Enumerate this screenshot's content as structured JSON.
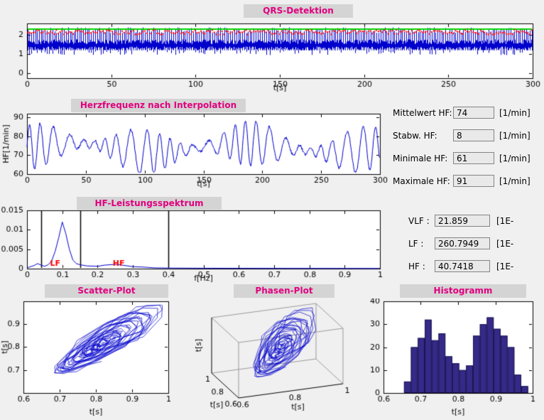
{
  "colors": {
    "background": "#f0f0f0",
    "title_text": "#e0007f",
    "title_box_bg": "#d4d4d4",
    "plot_bg": "#ffffff",
    "axis": "#000000",
    "signal_blue": "#0000cc",
    "threshold_green": "#00d400",
    "marker_red": "#ff0000",
    "hist_fill": "#352a87",
    "hist_edge": "#1a1550",
    "value_box_bg": "#e9e9e9",
    "value_box_border": "#848484"
  },
  "hf_stats": {
    "rows": [
      {
        "label": "Mittelwert HF:",
        "value": "74",
        "unit": "[1/min]"
      },
      {
        "label": "Stabw. HF:",
        "value": "8",
        "unit": "[1/min]"
      },
      {
        "label": "Minimale HF:",
        "value": "61",
        "unit": "[1/min]"
      },
      {
        "label": "Maximale HF:",
        "value": "91",
        "unit": "[1/min]"
      }
    ]
  },
  "power_stats": {
    "rows": [
      {
        "label": "VLF :",
        "value": "21.859",
        "unit": "[1E-"
      },
      {
        "label": "LF :",
        "value": "260.7949",
        "unit": "[1E-"
      },
      {
        "label": "HF :",
        "value": "40.7418",
        "unit": "[1E-"
      }
    ]
  },
  "chart_data": [
    {
      "id": "qrs",
      "type": "line",
      "title": "QRS-Detektion",
      "xlabel": "t[s]",
      "xlim": [
        0,
        300
      ],
      "xticks": [
        0,
        50,
        100,
        150,
        200,
        250,
        300
      ],
      "ylim": [
        -0.25,
        2.6
      ],
      "yticks": [
        0,
        1,
        2
      ],
      "description": "ECG signal (blue) with QRS spikes reaching detection threshold (green line) and red QRS detection markers",
      "threshold_line": 2.3,
      "baseline_band": [
        1.2,
        1.8
      ],
      "spike_peak": [
        2.1,
        2.4
      ],
      "beat_interval_s": 1.15
    },
    {
      "id": "hr",
      "type": "line",
      "title": "Herzfrequenz nach Interpolation",
      "xlabel": "t[s]",
      "ylabel": "HF[1/min]",
      "xlim": [
        0,
        300
      ],
      "xticks": [
        0,
        50,
        100,
        150,
        200,
        250,
        300
      ],
      "ylim": [
        60,
        92
      ],
      "yticks": [
        60,
        70,
        80,
        90
      ],
      "mean": 74,
      "std": 8,
      "min": 61,
      "max": 91,
      "oscillation_period_s": 10.8,
      "description": "Interpolated heart rate oscillating between about 61 and 91 1/min"
    },
    {
      "id": "spectrum",
      "type": "line",
      "title": "HF-Leistungsspektrum",
      "xlabel": "f[Hz]",
      "xlim": [
        0,
        1
      ],
      "xticks": [
        0,
        0.1,
        0.2,
        0.3,
        0.4,
        0.5,
        0.6,
        0.7,
        0.8,
        0.9,
        1
      ],
      "ylim": [
        0,
        0.015
      ],
      "yticks": [
        0,
        0.005,
        0.01,
        0.015
      ],
      "points": [
        [
          0,
          0.0002
        ],
        [
          0.02,
          0.0008
        ],
        [
          0.03,
          0.0013
        ],
        [
          0.04,
          0.0009
        ],
        [
          0.05,
          0.0006
        ],
        [
          0.06,
          0.001
        ],
        [
          0.07,
          0.002
        ],
        [
          0.08,
          0.0045
        ],
        [
          0.09,
          0.008
        ],
        [
          0.1,
          0.012
        ],
        [
          0.11,
          0.009
        ],
        [
          0.12,
          0.005
        ],
        [
          0.13,
          0.0022
        ],
        [
          0.14,
          0.0013
        ],
        [
          0.15,
          0.001
        ],
        [
          0.17,
          0.0007
        ],
        [
          0.2,
          0.0006
        ],
        [
          0.22,
          0.0009
        ],
        [
          0.25,
          0.0011
        ],
        [
          0.27,
          0.0009
        ],
        [
          0.3,
          0.0005
        ],
        [
          0.33,
          0.0004
        ],
        [
          0.36,
          0.0002
        ],
        [
          0.4,
          0.00015
        ],
        [
          0.5,
          0.0001
        ],
        [
          0.7,
          7e-05
        ],
        [
          1,
          5e-05
        ]
      ],
      "band_lines": [
        0.04,
        0.15,
        0.4
      ],
      "annotations": [
        {
          "text": "LF",
          "x": 0.08,
          "color": "#ff0000"
        },
        {
          "text": "HF",
          "x": 0.26,
          "color": "#ff0000"
        }
      ]
    },
    {
      "id": "scatter",
      "type": "line",
      "title": "Scatter-Plot",
      "xlabel": "t[s]",
      "ylabel": "t[s]",
      "xlim": [
        0.6,
        1
      ],
      "xticks": [
        0.6,
        0.7,
        0.8,
        0.9,
        1
      ],
      "ylim": [
        0.6,
        1
      ],
      "yticks": [
        0.7,
        0.8,
        0.9
      ],
      "description": "RR(i) vs RR(i+1) trajectory tangle spanning roughly 0.66-0.98 s"
    },
    {
      "id": "phase",
      "type": "line3d",
      "title": "Phasen-Plot",
      "xlabel": "t[s]",
      "ylabel": "t[s]",
      "zlabel": "t[s]",
      "xlim": [
        0.6,
        1
      ],
      "ylim": [
        0.6,
        1
      ],
      "zlim": [
        0.6,
        1
      ],
      "ticks": [
        0.6,
        0.8,
        1
      ],
      "description": "3D phase trajectory RR(i), RR(i+1), RR(i+2) forming a tangle in the upper middle of the axes box"
    },
    {
      "id": "histogram",
      "type": "bar",
      "title": "Histogramm",
      "xlabel": "t[s]",
      "xlim": [
        0.6,
        1
      ],
      "xticks": [
        0.6,
        0.7,
        0.8,
        0.9,
        1
      ],
      "ylim": [
        0,
        40
      ],
      "yticks": [
        0,
        10,
        20,
        30,
        40
      ],
      "bin_start": 0.655,
      "bin_width": 0.0185,
      "counts": [
        5,
        20,
        24,
        32,
        23,
        26,
        16,
        13,
        10,
        12,
        25,
        30,
        33,
        28,
        25,
        20,
        8,
        3
      ],
      "description": "Bimodal RR interval histogram with peaks near 0.72 s and 0.88 s"
    }
  ]
}
